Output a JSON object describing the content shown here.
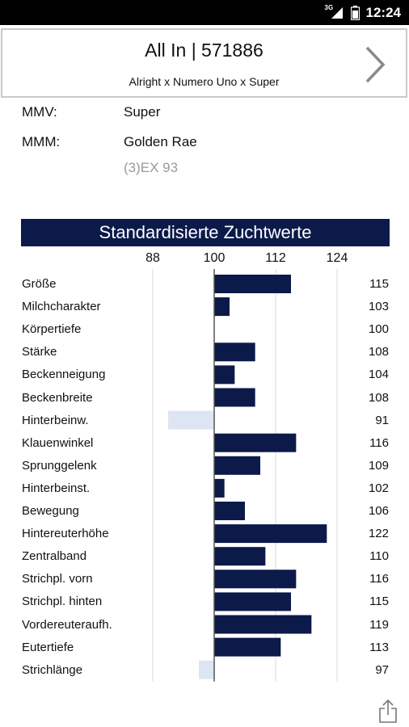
{
  "status_bar": {
    "time": "12:24",
    "network_type": "3G",
    "icons": [
      "signal-icon",
      "battery-icon"
    ]
  },
  "header": {
    "title": "All In | 571886",
    "subtitle": "Alright x Numero Uno x Super",
    "next_icon": "chevron-right-icon"
  },
  "info": {
    "mmv_label": "MMV:",
    "mmv_value": "Super",
    "mmm_label": "MMM:",
    "mmm_value": "Golden Rae",
    "mmm_note": "(3)EX 93"
  },
  "chart_data": {
    "type": "bar",
    "orientation": "horizontal",
    "title": "Standardisierte Zuchtwerte",
    "baseline": 100,
    "xlim": [
      82,
      130
    ],
    "x_ticks": [
      "88",
      "100",
      "112",
      "124"
    ],
    "gridlines": [
      88,
      112,
      124
    ],
    "colors": {
      "above": "#0c1a4a",
      "below": "#dde5f3",
      "baseline_line": "#555555"
    },
    "categories": [
      "Größe",
      "Milchcharakter",
      "Körpertiefe",
      "Stärke",
      "Beckenneigung",
      "Beckenbreite",
      "Hinterbeinw.",
      "Klauenwinkel",
      "Sprunggelenk",
      "Hinterbeinst.",
      "Bewegung",
      "Hintereuterhöhe",
      "Zentralband",
      "Strichpl. vorn",
      "Strichpl. hinten",
      "Vordereuteraufh.",
      "Eutertiefe",
      "Strichlänge"
    ],
    "values": [
      115,
      103,
      100,
      108,
      104,
      108,
      91,
      116,
      109,
      102,
      106,
      122,
      110,
      116,
      115,
      119,
      113,
      97
    ],
    "value_labels": [
      "115",
      "103",
      "100",
      "108",
      "104",
      "108",
      "91",
      "116",
      "109",
      "102",
      "106",
      "122",
      "110",
      "116",
      "115",
      "119",
      "113",
      "97"
    ]
  },
  "footer": {
    "share_icon": "share-icon"
  }
}
